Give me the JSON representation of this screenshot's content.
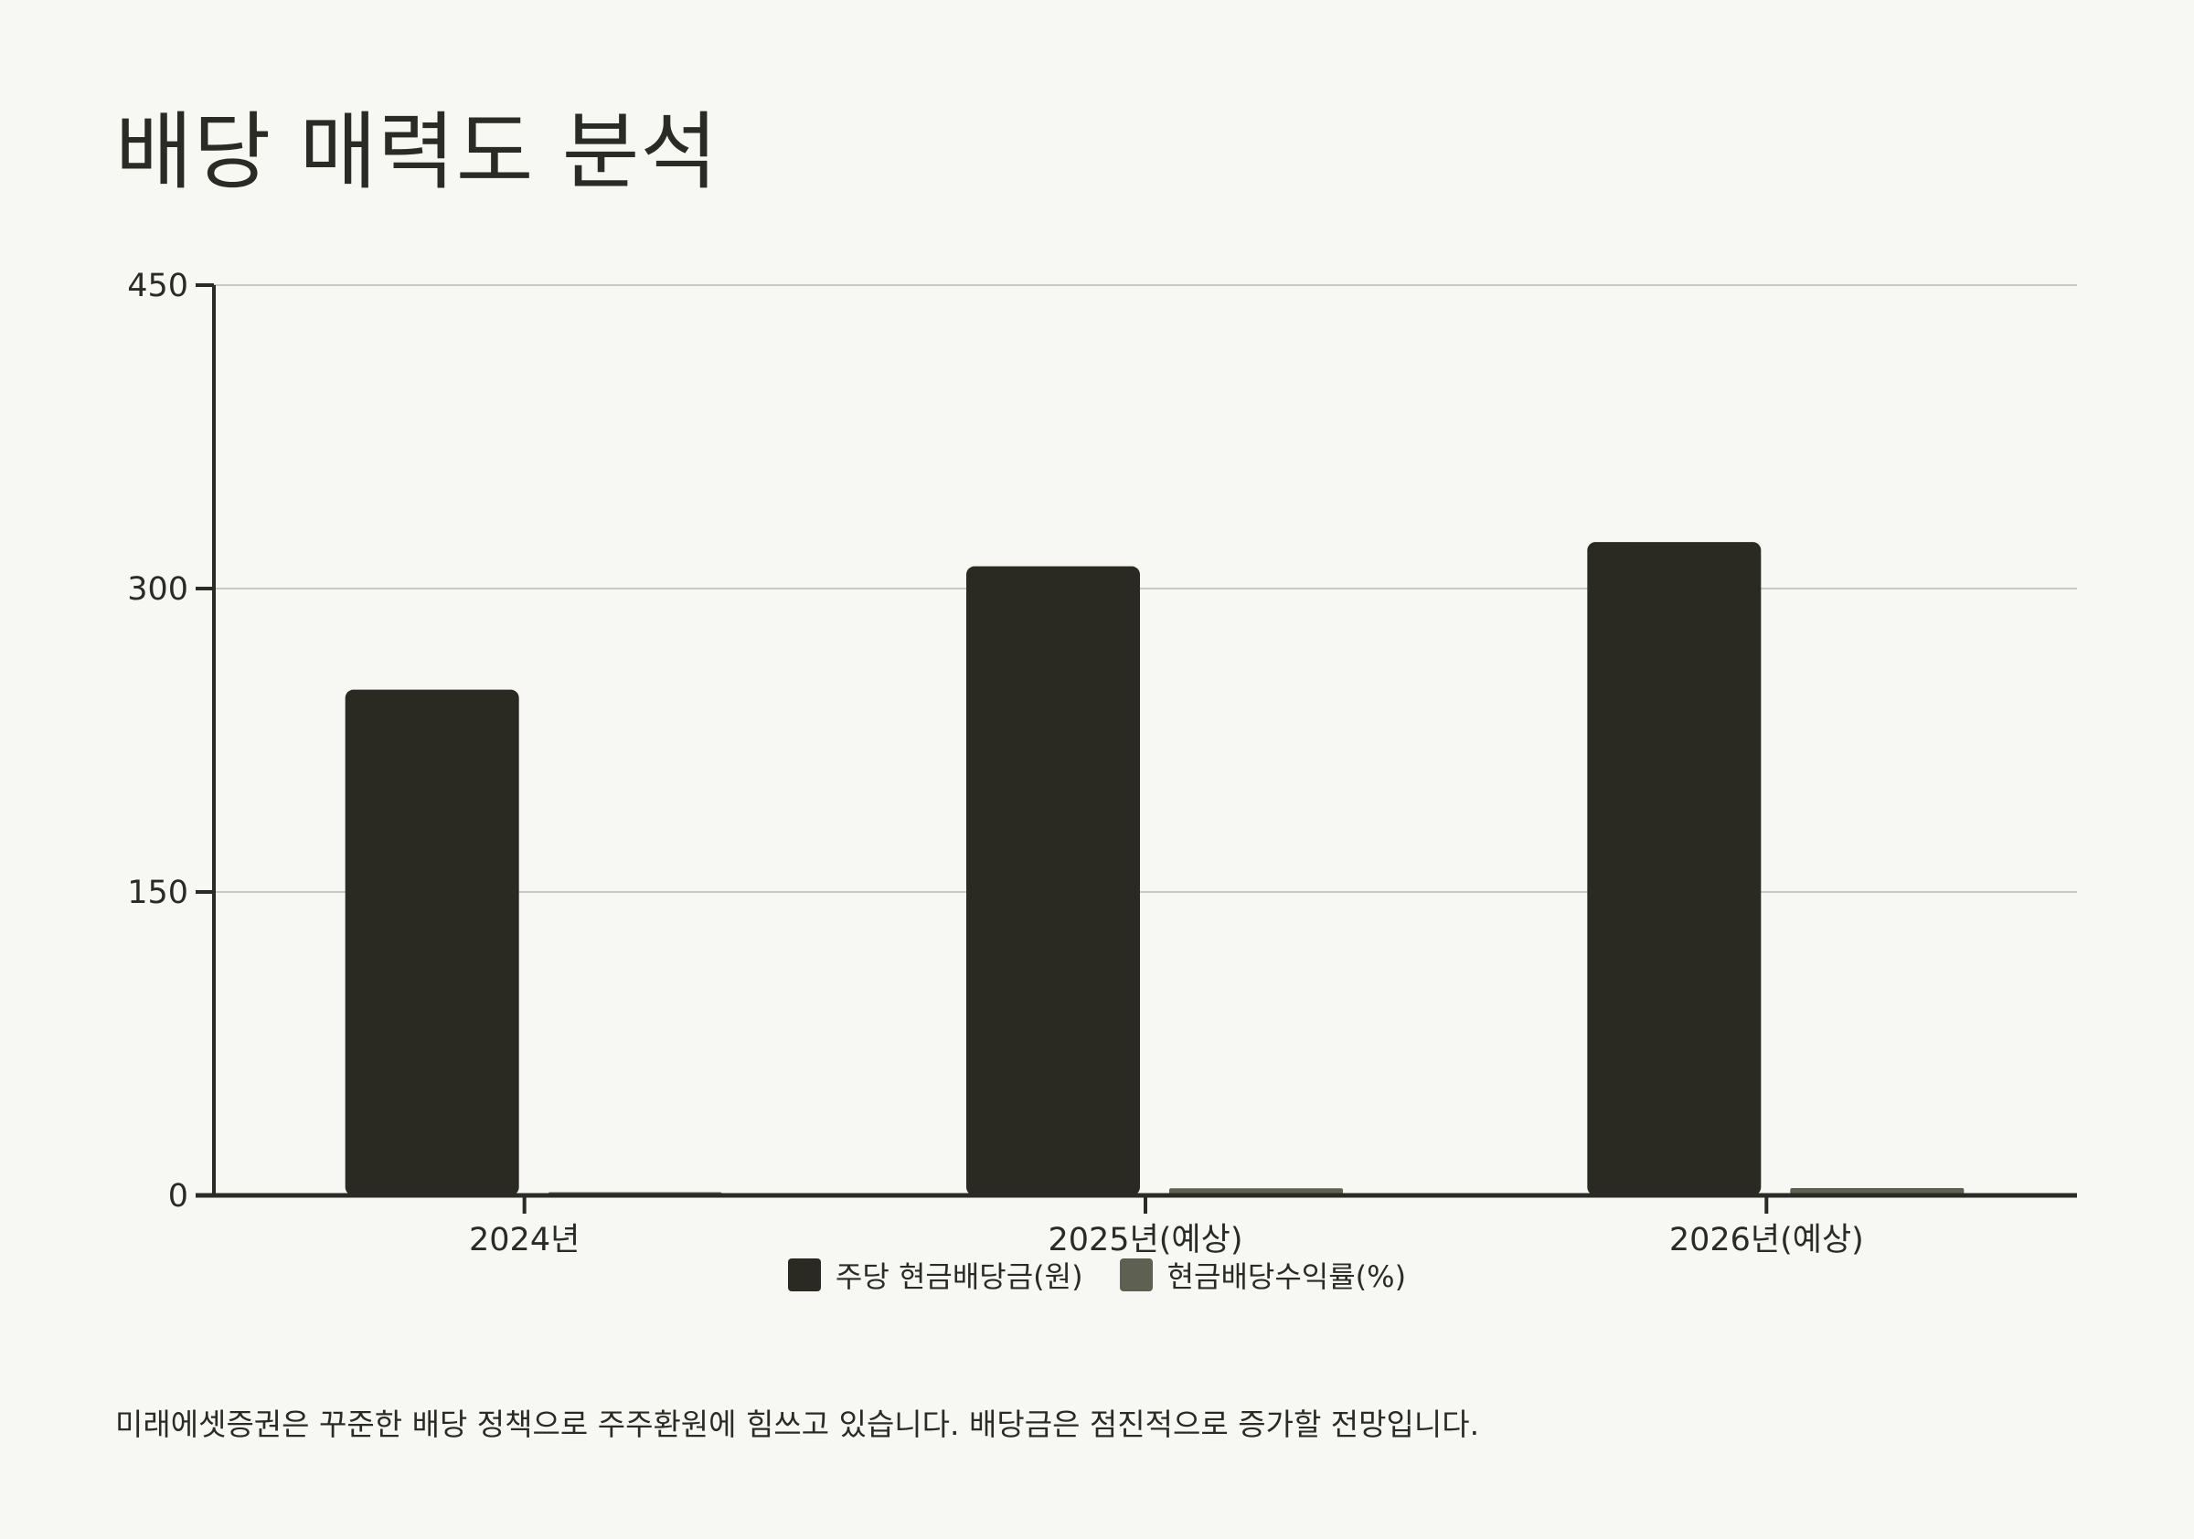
{
  "title": "배당 매력도 분석",
  "footnote": "미래에셋증권은 꾸준한 배당 정책으로 주주환원에 힘쓰고 있습니다. 배당금은 점진적으로 증가할 전망입니다.",
  "colors": {
    "background": "#f7f7f4",
    "series_dividend": "#2a2a23",
    "series_yield": "#5e6052",
    "axis": "#2b2b25",
    "grid": "#c9c9c4"
  },
  "chart_data": {
    "type": "bar",
    "categories": [
      "2024년",
      "2025년(예상)",
      "2026년(예상)"
    ],
    "series": [
      {
        "name": "주당 현금배당금(원)",
        "values": [
          250,
          311,
          323
        ]
      },
      {
        "name": "현금배당수익률(%)",
        "values": [
          1.6,
          3.5,
          3.6
        ]
      }
    ],
    "ylim": [
      0,
      450
    ],
    "yticks": [
      "0",
      "150",
      "300",
      "450"
    ],
    "grid": true,
    "legend_position": "bottom-center"
  }
}
